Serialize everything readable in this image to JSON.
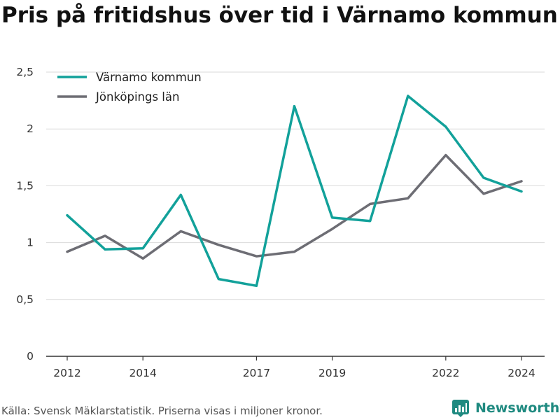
{
  "title": "Pris på fritidshus över tid i Värnamo kommun",
  "source": "Källa: Svensk Mäklarstatistik. Priserna visas i miljoner kronor.",
  "brand": "Newsworthy",
  "chart_data": {
    "type": "line",
    "title": "Pris på fritidshus över tid i Värnamo kommun",
    "xlabel": "",
    "ylabel": "",
    "x": [
      2012,
      2013,
      2014,
      2015,
      2016,
      2017,
      2018,
      2019,
      2020,
      2021,
      2022,
      2023,
      2024
    ],
    "x_ticks": [
      2012,
      2014,
      2017,
      2019,
      2022,
      2024
    ],
    "y_ticks": [
      "0",
      "0,5",
      "1",
      "1,5",
      "2",
      "2,5"
    ],
    "y_tick_values": [
      0,
      0.5,
      1,
      1.5,
      2,
      2.5
    ],
    "ylim": [
      0,
      2.5
    ],
    "grid": true,
    "legend_position": "top-left",
    "series": [
      {
        "name": "Värnamo kommun",
        "color": "#12a19a",
        "values": [
          1.24,
          0.94,
          0.95,
          1.42,
          0.68,
          0.62,
          2.2,
          1.22,
          1.19,
          2.29,
          2.02,
          1.57,
          1.45
        ]
      },
      {
        "name": "Jönköpings län",
        "color": "#6d6d74",
        "values": [
          0.92,
          1.06,
          0.86,
          1.1,
          0.98,
          0.88,
          0.92,
          1.12,
          1.34,
          1.39,
          1.77,
          1.43,
          1.54
        ]
      }
    ]
  }
}
